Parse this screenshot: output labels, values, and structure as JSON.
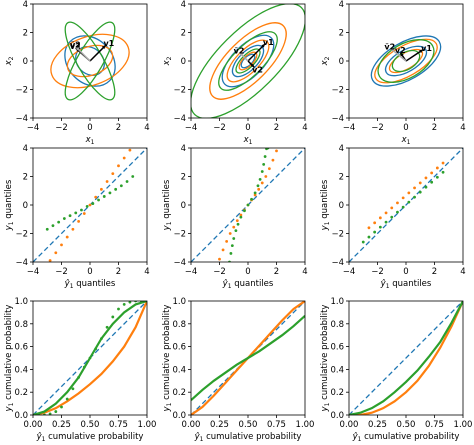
{
  "colors": {
    "blue": "#1f77b4",
    "orange": "#ff7f0e",
    "green": "#2ca02c",
    "vector": "#000000",
    "vector_faded": "#aaaaaa"
  },
  "chart_data": [
    {
      "type": "line",
      "subtype": "covariance-ellipses",
      "xlabel": "x1",
      "ylabel": "x2",
      "xlim": [
        -4,
        4
      ],
      "ylim": [
        -4,
        4
      ],
      "xticks": [
        -4,
        -2,
        0,
        2,
        4
      ],
      "yticks": [
        -4,
        -2,
        0,
        2,
        4
      ],
      "ellipses": [
        {
          "color": "blue",
          "angle": 45,
          "rx": 1.55,
          "ry": 1.95
        },
        {
          "color": "blue",
          "angle": 45,
          "rx": 0.9,
          "ry": 1.1
        },
        {
          "color": "orange",
          "angle": 20,
          "rx": 2.85,
          "ry": 1.7
        },
        {
          "color": "orange",
          "angle": 20,
          "rx": 1.65,
          "ry": 1.0
        },
        {
          "color": "green",
          "angle": 60,
          "rx": 3.1,
          "ry": 0.9
        },
        {
          "color": "green",
          "angle": -60,
          "rx": 3.1,
          "ry": 0.9
        }
      ],
      "vectors": [
        {
          "label": "v1",
          "color": "vector",
          "from": [
            0,
            0
          ],
          "to": [
            1.1,
            1.1
          ]
        },
        {
          "label": "v2",
          "color": "vector",
          "from": [
            0,
            0
          ],
          "to": [
            -1.0,
            0.9
          ]
        },
        {
          "label": "ṽ2",
          "color": "vector_faded",
          "from": [
            0,
            0
          ],
          "to": [
            -1.0,
            1.0
          ]
        }
      ]
    },
    {
      "type": "line",
      "subtype": "covariance-ellipses",
      "xlabel": "x1",
      "ylabel": "x2",
      "xlim": [
        -4,
        4
      ],
      "ylim": [
        -4,
        4
      ],
      "xticks": [
        -4,
        -2,
        0,
        2,
        4
      ],
      "yticks": [
        -4,
        -2,
        0,
        2,
        4
      ],
      "ellipses": [
        {
          "color": "blue",
          "angle": 45,
          "rx": 2.3,
          "ry": 1.1
        },
        {
          "color": "blue",
          "angle": 45,
          "rx": 1.4,
          "ry": 0.65
        },
        {
          "color": "blue",
          "angle": 45,
          "rx": 0.6,
          "ry": 0.3
        },
        {
          "color": "orange",
          "angle": 45,
          "rx": 3.5,
          "ry": 1.45
        },
        {
          "color": "orange",
          "angle": 45,
          "rx": 1.9,
          "ry": 0.8
        },
        {
          "color": "orange",
          "angle": 45,
          "rx": 0.8,
          "ry": 0.35
        },
        {
          "color": "green",
          "angle": 45,
          "rx": 5.3,
          "ry": 2.1
        },
        {
          "color": "green",
          "angle": 45,
          "rx": 2.7,
          "ry": 1.05
        },
        {
          "color": "green",
          "angle": 45,
          "rx": 1.1,
          "ry": 0.45
        }
      ],
      "vectors": [
        {
          "label": "v1",
          "color": "vector",
          "from": [
            0,
            0
          ],
          "to": [
            1.2,
            1.2
          ]
        },
        {
          "label": "v2",
          "color": "vector",
          "from": [
            0,
            0
          ],
          "to": [
            0.45,
            -0.45
          ]
        },
        {
          "label": "ṽ2",
          "color": "vector_faded",
          "from": [
            0,
            0
          ],
          "to": [
            -0.6,
            0.6
          ]
        }
      ]
    },
    {
      "type": "line",
      "subtype": "covariance-ellipses",
      "xlabel": "x1",
      "ylabel": "x2",
      "xlim": [
        -4,
        4
      ],
      "ylim": [
        -4,
        4
      ],
      "xticks": [
        -4,
        -2,
        0,
        2,
        4
      ],
      "yticks": [
        -4,
        -2,
        0,
        2,
        4
      ],
      "ellipses": [
        {
          "color": "blue",
          "angle": 30,
          "rx": 2.7,
          "ry": 1.3
        },
        {
          "color": "blue",
          "angle": 30,
          "rx": 1.6,
          "ry": 0.75
        },
        {
          "color": "orange",
          "angle": 30,
          "rx": 2.45,
          "ry": 1.05
        },
        {
          "color": "orange",
          "angle": 30,
          "rx": 1.3,
          "ry": 0.55
        },
        {
          "color": "green",
          "angle": 30,
          "rx": 2.15,
          "ry": 1.2
        },
        {
          "color": "green",
          "angle": 30,
          "rx": 1.05,
          "ry": 0.6
        }
      ],
      "vectors": [
        {
          "label": "v1",
          "color": "vector",
          "from": [
            0,
            0
          ],
          "to": [
            1.2,
            0.8
          ]
        },
        {
          "label": "v2",
          "color": "vector",
          "from": [
            0,
            0
          ],
          "to": [
            -0.4,
            0.6
          ]
        },
        {
          "label": "ṽ2",
          "color": "vector_faded",
          "from": [
            0,
            0
          ],
          "to": [
            -1.1,
            0.9
          ]
        }
      ]
    },
    {
      "type": "scatter",
      "subtype": "qq-plot",
      "xlabel": "ŷ1 quantiles",
      "ylabel": "y1 quantiles",
      "xlim": [
        -4,
        4
      ],
      "ylim": [
        -4,
        4
      ],
      "xticks": [
        -4,
        -2,
        0,
        2,
        4
      ],
      "yticks": [
        -4,
        -2,
        0,
        2,
        4
      ],
      "series": [
        {
          "color": "blue",
          "style": "dashed",
          "x": [
            -4,
            4
          ],
          "y": [
            -4,
            4
          ]
        },
        {
          "color": "orange",
          "style": "dots",
          "x": [
            -2.8,
            -2.4,
            -2.0,
            -1.6,
            -1.2,
            -0.8,
            -0.4,
            0,
            0.4,
            0.8,
            1.2,
            1.6,
            2.0,
            2.4,
            2.8
          ],
          "y": [
            -3.9,
            -3.35,
            -2.8,
            -2.25,
            -1.7,
            -1.15,
            -0.6,
            0.0,
            0.55,
            1.1,
            1.65,
            2.2,
            2.75,
            3.3,
            3.85
          ]
        },
        {
          "color": "green",
          "style": "dots",
          "x": [
            -3.0,
            -2.6,
            -2.2,
            -1.8,
            -1.4,
            -1.0,
            -0.6,
            -0.2,
            0.2,
            0.6,
            1.0,
            1.4,
            1.8,
            2.2,
            2.6,
            3.0
          ],
          "y": [
            -1.7,
            -1.45,
            -1.2,
            -0.95,
            -0.75,
            -0.55,
            -0.35,
            -0.1,
            0.1,
            0.35,
            0.6,
            0.85,
            1.1,
            1.35,
            1.65,
            2.0
          ]
        }
      ]
    },
    {
      "type": "scatter",
      "subtype": "qq-plot",
      "xlabel": "ŷ1 quantiles",
      "ylabel": "y1 quantiles",
      "xlim": [
        -4,
        4
      ],
      "ylim": [
        -4,
        4
      ],
      "xticks": [
        -4,
        -2,
        0,
        2,
        4
      ],
      "yticks": [
        -4,
        -2,
        0,
        2,
        4
      ],
      "series": [
        {
          "color": "blue",
          "style": "dashed",
          "x": [
            -4,
            4
          ],
          "y": [
            -4,
            4
          ]
        },
        {
          "color": "orange",
          "style": "dots",
          "x": [
            -2.0,
            -1.75,
            -1.5,
            -1.25,
            -1.0,
            -0.75,
            -0.5,
            -0.25,
            0,
            0.25,
            0.5,
            0.75,
            1.0,
            1.25,
            1.5,
            1.75,
            2.0
          ],
          "y": [
            -3.8,
            -3.15,
            -2.55,
            -2.0,
            -1.55,
            -1.1,
            -0.7,
            -0.35,
            0.0,
            0.35,
            0.7,
            1.1,
            1.55,
            2.0,
            2.55,
            3.15,
            3.8
          ]
        },
        {
          "color": "green",
          "style": "dots",
          "x": [
            -1.3,
            -1.2,
            -1.1,
            -1.0,
            -0.85,
            -0.7,
            -0.5,
            -0.25,
            0,
            0.25,
            0.5,
            0.7,
            0.85,
            1.0,
            1.1,
            1.2,
            1.3,
            1.4
          ],
          "y": [
            -4.0,
            -3.4,
            -2.85,
            -2.35,
            -1.8,
            -1.35,
            -0.85,
            -0.4,
            0.0,
            0.4,
            0.85,
            1.35,
            1.8,
            2.35,
            2.85,
            3.4,
            3.95,
            4.0
          ]
        }
      ]
    },
    {
      "type": "scatter",
      "subtype": "qq-plot",
      "xlabel": "ŷ1 quantiles",
      "ylabel": "y1 quantiles",
      "xlim": [
        -4,
        4
      ],
      "ylim": [
        -4,
        4
      ],
      "xticks": [
        -4,
        -2,
        0,
        2,
        4
      ],
      "yticks": [
        -4,
        -2,
        0,
        2,
        4
      ],
      "series": [
        {
          "color": "blue",
          "style": "dashed",
          "x": [
            -4,
            4
          ],
          "y": [
            -4,
            4
          ]
        },
        {
          "color": "orange",
          "style": "dots",
          "x": [
            -2.6,
            -2.2,
            -1.8,
            -1.4,
            -1.0,
            -0.6,
            -0.2,
            0.2,
            0.6,
            1.0,
            1.4,
            1.8,
            2.2,
            2.6
          ],
          "y": [
            -1.6,
            -1.25,
            -0.9,
            -0.55,
            -0.2,
            0.15,
            0.5,
            0.85,
            1.2,
            1.55,
            1.9,
            2.25,
            2.6,
            2.95
          ]
        },
        {
          "color": "green",
          "style": "dots",
          "x": [
            -3.0,
            -2.6,
            -2.2,
            -1.8,
            -1.4,
            -1.0,
            -0.6,
            -0.2,
            0.2,
            0.6,
            1.0,
            1.4,
            1.8,
            2.2,
            2.6
          ],
          "y": [
            -2.6,
            -2.25,
            -1.9,
            -1.55,
            -1.2,
            -0.85,
            -0.5,
            -0.15,
            0.2,
            0.55,
            0.9,
            1.25,
            1.6,
            1.95,
            2.3
          ]
        }
      ]
    },
    {
      "type": "line",
      "subtype": "pp-plot",
      "xlabel": "ŷ1 cumulative probability",
      "ylabel": "y1 cumulative probability",
      "xlim": [
        0,
        1
      ],
      "ylim": [
        0,
        1
      ],
      "xticks": [
        0.0,
        0.25,
        0.5,
        0.75,
        1.0
      ],
      "yticks": [
        0.0,
        0.2,
        0.4,
        0.6,
        0.8,
        1.0
      ],
      "xticklabels": [
        "0.00",
        "0.25",
        "0.50",
        "0.75",
        "1.00"
      ],
      "yticklabels": [
        "0.0",
        "0.2",
        "0.4",
        "0.6",
        "0.8",
        "1.0"
      ],
      "series": [
        {
          "color": "blue",
          "style": "dashed",
          "x": [
            0,
            1
          ],
          "y": [
            0,
            1
          ]
        },
        {
          "color": "orange",
          "style": "solid",
          "x": [
            0,
            0.1,
            0.2,
            0.3,
            0.4,
            0.5,
            0.6,
            0.7,
            0.8,
            0.9,
            1.0
          ],
          "y": [
            0.0,
            0.02,
            0.06,
            0.12,
            0.19,
            0.27,
            0.36,
            0.47,
            0.6,
            0.77,
            1.0
          ]
        },
        {
          "color": "green",
          "style": "solid",
          "x": [
            0.0,
            0.1,
            0.2,
            0.3,
            0.4,
            0.5,
            0.6,
            0.7,
            0.8,
            0.9,
            1.0
          ],
          "y": [
            0.0,
            0.03,
            0.1,
            0.2,
            0.33,
            0.5,
            0.67,
            0.8,
            0.9,
            0.97,
            1.0
          ]
        },
        {
          "color": "green",
          "style": "dots",
          "x": [
            0.05,
            0.1,
            0.15,
            0.2,
            0.25,
            0.3,
            0.35,
            0.4,
            0.45,
            0.5,
            0.55,
            0.6,
            0.65,
            0.7,
            0.75,
            0.8,
            0.85,
            0.9,
            0.95
          ],
          "y": [
            0.0,
            0.0,
            0.01,
            0.03,
            0.07,
            0.14,
            0.23,
            0.33,
            0.42,
            0.5,
            0.58,
            0.67,
            0.77,
            0.86,
            0.93,
            0.97,
            0.99,
            1.0,
            1.0
          ]
        }
      ]
    },
    {
      "type": "line",
      "subtype": "pp-plot",
      "xlabel": "ŷ1 cumulative probability",
      "ylabel": "y1 cumulative probability",
      "xlim": [
        0,
        1
      ],
      "ylim": [
        0,
        1
      ],
      "xticks": [
        0.0,
        0.25,
        0.5,
        0.75,
        1.0
      ],
      "yticks": [
        0.0,
        0.2,
        0.4,
        0.6,
        0.8,
        1.0
      ],
      "xticklabels": [
        "0.00",
        "0.25",
        "0.50",
        "0.75",
        "1.00"
      ],
      "yticklabels": [
        "0.0",
        "0.2",
        "0.4",
        "0.6",
        "0.8",
        "1.0"
      ],
      "series": [
        {
          "color": "blue",
          "style": "dashed",
          "x": [
            0,
            1
          ],
          "y": [
            0,
            1
          ]
        },
        {
          "color": "orange",
          "style": "solid",
          "x": [
            0.0,
            0.1,
            0.2,
            0.3,
            0.4,
            0.5,
            0.6,
            0.7,
            0.8,
            0.9,
            1.0
          ],
          "y": [
            0.0,
            0.07,
            0.17,
            0.28,
            0.39,
            0.5,
            0.61,
            0.72,
            0.83,
            0.93,
            1.0
          ]
        },
        {
          "color": "green",
          "style": "solid",
          "x": [
            0.0,
            0.1,
            0.2,
            0.3,
            0.4,
            0.5,
            0.6,
            0.7,
            0.8,
            0.9,
            1.0
          ],
          "y": [
            0.13,
            0.22,
            0.3,
            0.37,
            0.44,
            0.5,
            0.56,
            0.63,
            0.7,
            0.78,
            0.87
          ]
        }
      ]
    },
    {
      "type": "line",
      "subtype": "pp-plot",
      "xlabel": "ŷ1 cumulative probability",
      "ylabel": "y1 cumulative probability",
      "xlim": [
        0,
        1
      ],
      "ylim": [
        0,
        1
      ],
      "xticks": [
        0.0,
        0.25,
        0.5,
        0.75,
        1.0
      ],
      "yticks": [
        0.0,
        0.2,
        0.4,
        0.6,
        0.8,
        1.0
      ],
      "xticklabels": [
        "0.00",
        "0.25",
        "0.50",
        "0.75",
        "1.00"
      ],
      "yticklabels": [
        "0.0",
        "0.2",
        "0.4",
        "0.6",
        "0.8",
        "1.0"
      ],
      "series": [
        {
          "color": "blue",
          "style": "dashed",
          "x": [
            0,
            1
          ],
          "y": [
            0,
            1
          ]
        },
        {
          "color": "orange",
          "style": "solid",
          "x": [
            0.0,
            0.1,
            0.2,
            0.3,
            0.4,
            0.5,
            0.6,
            0.7,
            0.8,
            0.9,
            1.0
          ],
          "y": [
            0.0,
            0.0,
            0.02,
            0.06,
            0.12,
            0.2,
            0.3,
            0.43,
            0.59,
            0.78,
            1.0
          ]
        },
        {
          "color": "green",
          "style": "solid",
          "x": [
            0.0,
            0.1,
            0.2,
            0.3,
            0.4,
            0.5,
            0.6,
            0.7,
            0.8,
            0.9,
            1.0
          ],
          "y": [
            0.0,
            0.02,
            0.06,
            0.12,
            0.2,
            0.29,
            0.39,
            0.51,
            0.64,
            0.81,
            1.0
          ]
        }
      ]
    }
  ]
}
